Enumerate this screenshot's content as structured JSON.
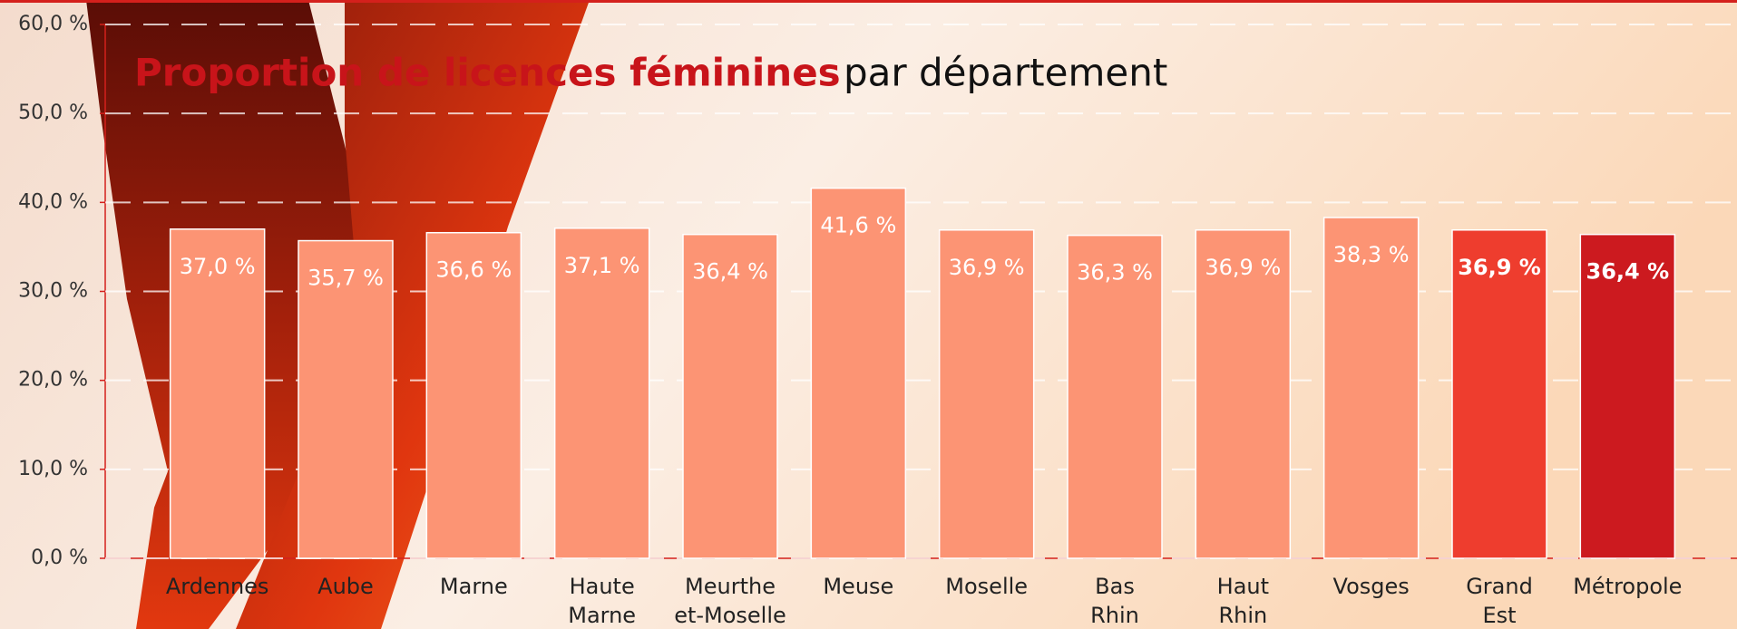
{
  "chart_data": {
    "type": "bar",
    "title": "Proportion de licences féminines",
    "subtitle": "par département",
    "categories": [
      [
        "Ardennes"
      ],
      [
        "Aube"
      ],
      [
        "Marne"
      ],
      [
        "Haute",
        "Marne"
      ],
      [
        "Meurthe",
        "et-Moselle"
      ],
      [
        "Meuse"
      ],
      [
        "Moselle"
      ],
      [
        "Bas",
        "Rhin"
      ],
      [
        "Haut",
        "Rhin"
      ],
      [
        "Vosges"
      ],
      [
        "Grand",
        "Est"
      ],
      [
        "Métropole"
      ]
    ],
    "values": [
      37.0,
      35.7,
      36.6,
      37.1,
      36.4,
      41.6,
      36.9,
      36.3,
      36.9,
      38.3,
      36.9,
      36.4
    ],
    "value_labels": [
      "37,0 %",
      "35,7 %",
      "36,6 %",
      "37,1 %",
      "36,4 %",
      "41,6 %",
      "36,9 %",
      "36,3 %",
      "36,9 %",
      "38,3 %",
      "36,9 %",
      "36,4 %"
    ],
    "colors": [
      "#fc9474",
      "#fc9474",
      "#fc9474",
      "#fc9474",
      "#fc9474",
      "#fc9474",
      "#fc9474",
      "#fc9474",
      "#fc9474",
      "#fc9474",
      "#ee3d2e",
      "#cc1a1f"
    ],
    "ylim": [
      0,
      60
    ],
    "yticks": [
      {
        "value": 0,
        "label": "0,0 %"
      },
      {
        "value": 10,
        "label": "10,0 %"
      },
      {
        "value": 20,
        "label": "20,0 %"
      },
      {
        "value": 30,
        "label": "30,0 %"
      },
      {
        "value": 40,
        "label": "40,0 %"
      },
      {
        "value": 50,
        "label": "50,0 %"
      },
      {
        "value": 60,
        "label": "60,0 %"
      }
    ],
    "grid": true
  }
}
